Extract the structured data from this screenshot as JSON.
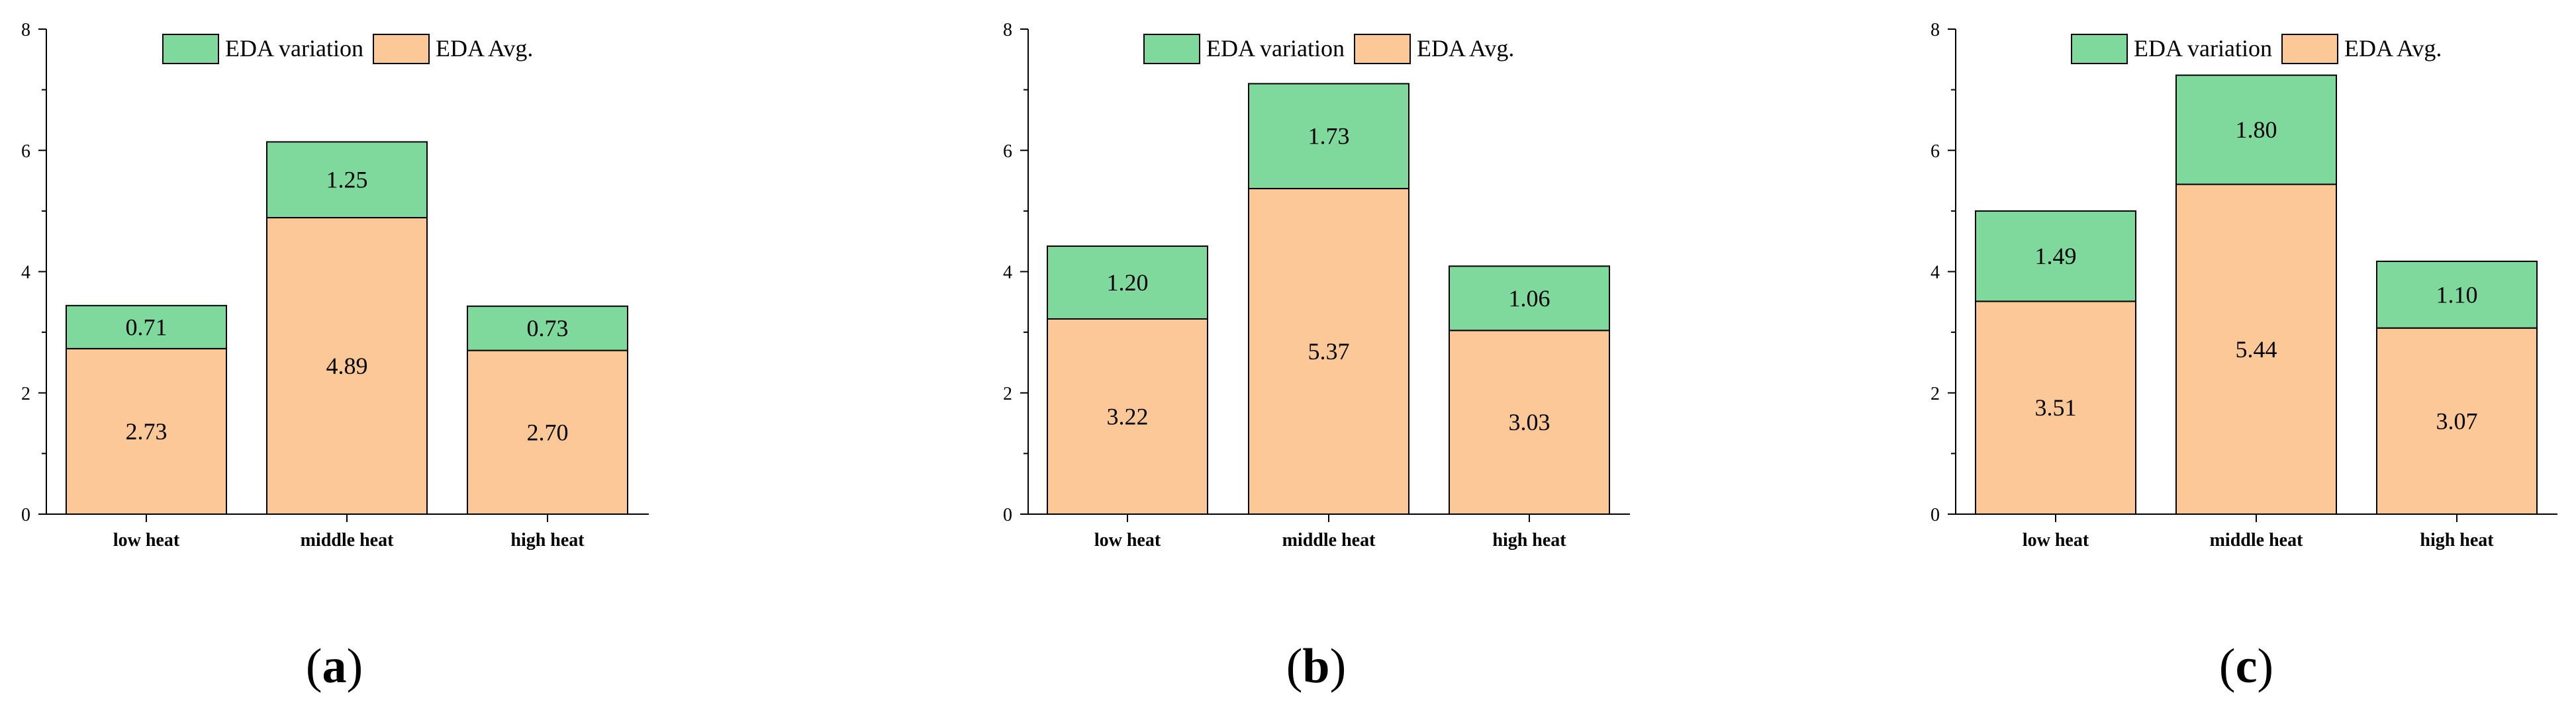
{
  "colors": {
    "avg": "#FDC898",
    "variation": "#80D99C",
    "stroke": "#000000"
  },
  "chart_data": [
    {
      "type": "bar",
      "stacked": true,
      "panel_label": "a",
      "categories": [
        "low heat",
        "middle heat",
        "high heat"
      ],
      "series": [
        {
          "name": "EDA Avg.",
          "values": [
            2.73,
            4.89,
            2.7
          ],
          "labels": [
            "2.73",
            "4.89",
            "2.70"
          ]
        },
        {
          "name": "EDA variation",
          "values": [
            0.71,
            1.25,
            0.73
          ],
          "labels": [
            "0.71",
            "1.25",
            "0.73"
          ]
        }
      ],
      "legend": [
        "EDA variation",
        "EDA Avg."
      ],
      "legend_position": "top",
      "ylim": [
        0,
        8
      ],
      "yticks": [
        "0",
        "2",
        "4",
        "6",
        "8"
      ],
      "xlabel": "",
      "ylabel": ""
    },
    {
      "type": "bar",
      "stacked": true,
      "panel_label": "b",
      "categories": [
        "low heat",
        "middle heat",
        "high heat"
      ],
      "series": [
        {
          "name": "EDA Avg.",
          "values": [
            3.22,
            5.37,
            3.03
          ],
          "labels": [
            "3.22",
            "5.37",
            "3.03"
          ]
        },
        {
          "name": "EDA variation",
          "values": [
            1.2,
            1.73,
            1.06
          ],
          "labels": [
            "1.20",
            "1.73",
            "1.06"
          ]
        }
      ],
      "legend": [
        "EDA variation",
        "EDA Avg."
      ],
      "legend_position": "top",
      "ylim": [
        0,
        8
      ],
      "yticks": [
        "0",
        "2",
        "4",
        "6",
        "8"
      ],
      "xlabel": "",
      "ylabel": ""
    },
    {
      "type": "bar",
      "stacked": true,
      "panel_label": "c",
      "categories": [
        "low heat",
        "middle heat",
        "high heat"
      ],
      "series": [
        {
          "name": "EDA Avg.",
          "values": [
            3.51,
            5.44,
            3.07
          ],
          "labels": [
            "3.51",
            "5.44",
            "3.07"
          ]
        },
        {
          "name": "EDA variation",
          "values": [
            1.49,
            1.8,
            1.1
          ],
          "labels": [
            "1.49",
            "1.80",
            "1.10"
          ]
        }
      ],
      "legend": [
        "EDA variation",
        "EDA Avg."
      ],
      "legend_position": "top",
      "ylim": [
        0,
        8
      ],
      "yticks": [
        "0",
        "2",
        "4",
        "6",
        "8"
      ],
      "xlabel": "",
      "ylabel": ""
    }
  ]
}
